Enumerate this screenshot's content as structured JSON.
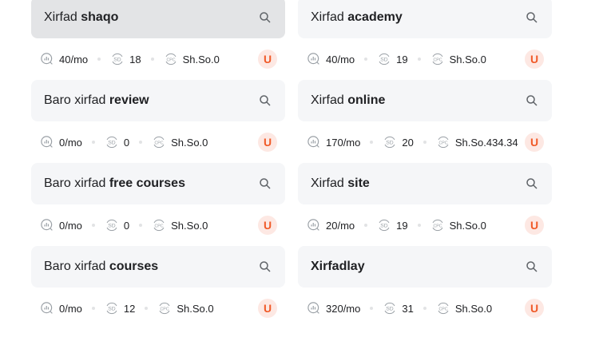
{
  "items": [
    {
      "prefix": "Xirfad ",
      "bold": "shaqo",
      "volume": "40/mo",
      "sd": "18",
      "cpc": "Sh.So.0",
      "badge": "U",
      "active": true
    },
    {
      "prefix": "Xirfad ",
      "bold": "academy",
      "volume": "40/mo",
      "sd": "19",
      "cpc": "Sh.So.0",
      "badge": "U"
    },
    {
      "prefix": "Baro xirfad ",
      "bold": "review",
      "volume": "0/mo",
      "sd": "0",
      "cpc": "Sh.So.0",
      "badge": "U"
    },
    {
      "prefix": "Xirfad ",
      "bold": "online",
      "volume": "170/mo",
      "sd": "20",
      "cpc": "Sh.So.434.34",
      "badge": "U"
    },
    {
      "prefix": "Baro xirfad ",
      "bold": "free courses",
      "volume": "0/mo",
      "sd": "0",
      "cpc": "Sh.So.0",
      "badge": "U"
    },
    {
      "prefix": "Xirfad ",
      "bold": "site",
      "volume": "20/mo",
      "sd": "19",
      "cpc": "Sh.So.0",
      "badge": "U"
    },
    {
      "prefix": "Baro xirfad ",
      "bold": "courses",
      "volume": "0/mo",
      "sd": "12",
      "cpc": "Sh.So.0",
      "badge": "U"
    },
    {
      "prefix": "",
      "bold": "Xirfadlay",
      "volume": "320/mo",
      "sd": "31",
      "cpc": "Sh.So.0",
      "badge": "U"
    }
  ],
  "icons": {
    "search": "search-icon",
    "volume": "volume-chart-icon",
    "sd": "sd-icon",
    "cpc": "cpc-icon"
  },
  "colors": {
    "badge_bg": "#fde8e3",
    "badge_text": "#f05a28",
    "card_bg": "#f5f6f8",
    "card_active_bg": "#e3e4e6"
  }
}
